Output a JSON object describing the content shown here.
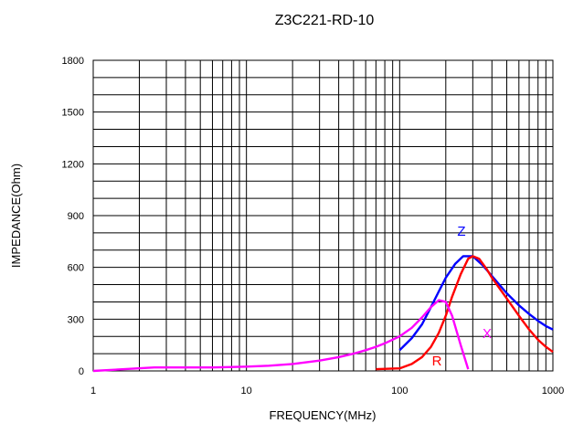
{
  "chart_data": {
    "type": "line",
    "title": "Z3C221-RD-10",
    "xlabel": "FREQUENCY(MHz)",
    "ylabel": "IMPEDANCE(Ohm)",
    "x_scale": "log",
    "xlim": [
      1,
      1000
    ],
    "ylim": [
      0,
      1800
    ],
    "x_ticks": [
      "1",
      "10",
      "100",
      "1000"
    ],
    "y_ticks": [
      "0",
      "300",
      "600",
      "900",
      "1200",
      "1500",
      "1800"
    ],
    "grid": true,
    "series": [
      {
        "name": "Z",
        "color": "#0000ff",
        "x": [
          100,
          120,
          140,
          160,
          180,
          200,
          230,
          260,
          300,
          350,
          400,
          500,
          600,
          700,
          800,
          900,
          1000
        ],
        "y": [
          120,
          190,
          270,
          370,
          460,
          540,
          620,
          665,
          665,
          610,
          550,
          450,
          380,
          330,
          290,
          260,
          240
        ]
      },
      {
        "name": "R",
        "color": "#ff0000",
        "x": [
          70,
          100,
          120,
          140,
          160,
          180,
          200,
          220,
          250,
          280,
          300,
          330,
          370,
          400,
          500,
          600,
          700,
          800,
          900,
          1000
        ],
        "y": [
          10,
          15,
          40,
          80,
          140,
          220,
          320,
          430,
          560,
          650,
          665,
          650,
          590,
          540,
          420,
          320,
          240,
          180,
          140,
          110
        ]
      },
      {
        "name": "X",
        "color": "#ff00ff",
        "x": [
          1,
          2.5,
          4,
          6,
          10,
          14,
          20,
          30,
          40,
          50,
          60,
          70,
          80,
          100,
          120,
          140,
          160,
          180,
          200,
          220,
          250,
          280
        ],
        "y": [
          0,
          20,
          20,
          20,
          25,
          30,
          40,
          60,
          80,
          100,
          120,
          140,
          160,
          200,
          250,
          310,
          370,
          410,
          400,
          320,
          150,
          10
        ]
      }
    ]
  }
}
